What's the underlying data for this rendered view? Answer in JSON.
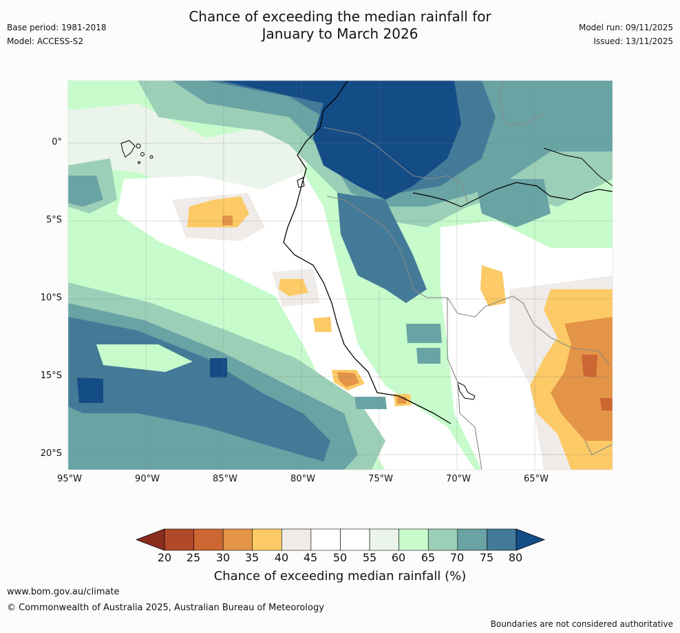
{
  "title": {
    "line1": "Chance of exceeding the median rainfall for",
    "line2": "January to March 2026"
  },
  "meta": {
    "base_period": "Base period: 1981-2018",
    "model": "Model: ACCESS-S2",
    "model_run": "Model run: 09/11/2025",
    "issued": "Issued: 13/11/2025"
  },
  "axes": {
    "lat_labels": [
      "0°",
      "5°S",
      "10°S",
      "15°S",
      "20°S"
    ],
    "lon_labels": [
      "95°W",
      "90°W",
      "85°W",
      "80°W",
      "75°W",
      "70°W",
      "65°W"
    ]
  },
  "colorbar": {
    "ticks": [
      "20",
      "25",
      "30",
      "35",
      "40",
      "45",
      "50",
      "55",
      "60",
      "65",
      "70",
      "75",
      "80"
    ],
    "colors": [
      "#b0492a",
      "#cc6633",
      "#e39447",
      "#fcca66",
      "#efebe8",
      "#ffffff",
      "#ffffff",
      "#eaf4ea",
      "#c7fbcc",
      "#9ccfb7",
      "#6aa3a4",
      "#437a98"
    ],
    "low_extend": "#8a2c1e",
    "high_extend": "#144c86",
    "label": "Chance of exceeding median rainfall (%)"
  },
  "footer": {
    "website": "www.bom.gov.au/climate",
    "copyright": "© Commonwealth of Australia 2025, Australian Bureau of Meteorology",
    "disclaimer": "Boundaries are not considered authoritative"
  }
}
